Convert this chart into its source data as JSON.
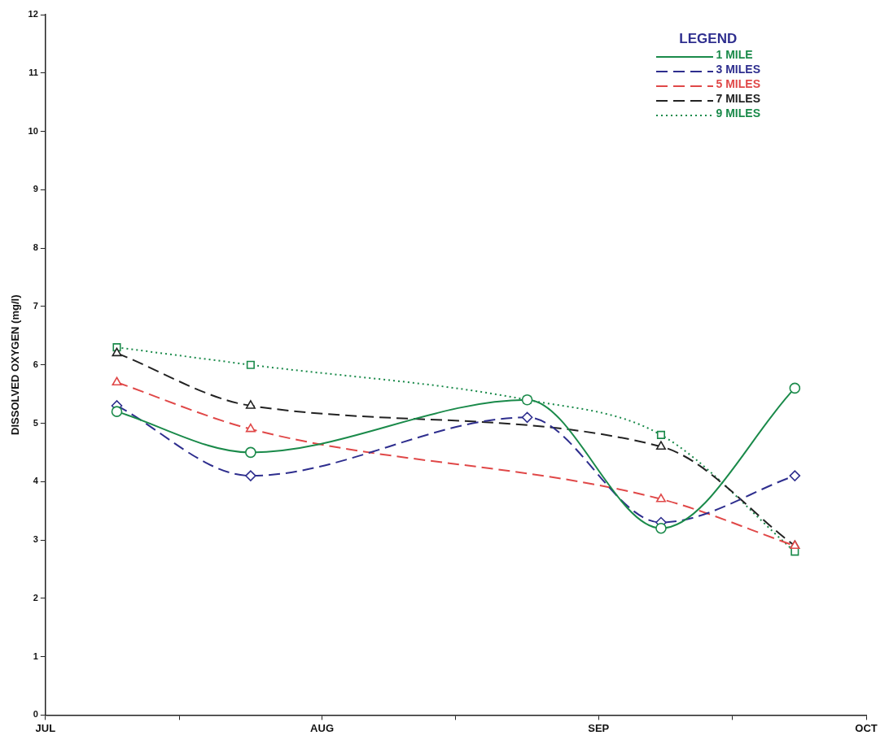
{
  "chart_data": {
    "type": "line",
    "ylabel": "DISSOLVED OXYGEN (mg/l)",
    "legend_title": "LEGEND",
    "legend": "top right",
    "grid": false,
    "x": [
      "--07-09",
      "--07-24",
      "--08-24",
      "--09-08",
      "--09-23"
    ],
    "xlim": [
      "--07-01",
      "--10-01"
    ],
    "xticks": [
      {
        "value": "--07-01",
        "label": "JUL"
      },
      {
        "value": "--07-16",
        "label": null
      },
      {
        "value": "--08-01",
        "label": "AUG"
      },
      {
        "value": "--08-16",
        "label": null
      },
      {
        "value": "--09-01",
        "label": "SEP"
      },
      {
        "value": "--09-16",
        "label": null
      },
      {
        "value": "--10-01",
        "label": "OCT"
      }
    ],
    "ylim": [
      0,
      12
    ],
    "yticks": [
      0,
      1,
      2,
      3,
      4,
      5,
      6,
      7,
      8,
      9,
      10,
      11,
      12
    ],
    "series": [
      {
        "name": "1 MILE",
        "color": "#1a8a4a",
        "marker": "circle",
        "line_style": "solid",
        "values": [
          5.2,
          4.5,
          5.4,
          3.2,
          5.6
        ]
      },
      {
        "name": "3 MILES",
        "color": "#2e2e8e",
        "marker": "diamond",
        "line_style": "dashed",
        "values": [
          5.3,
          4.1,
          5.1,
          3.3,
          4.1
        ]
      },
      {
        "name": "5 MILES",
        "color": "#e04848",
        "marker": "triangle",
        "line_style": "dashed",
        "values": [
          5.7,
          4.9,
          null,
          3.7,
          2.9
        ]
      },
      {
        "name": "7 MILES",
        "color": "#222222",
        "marker": "triangle",
        "line_style": "dashed",
        "values": [
          6.2,
          5.3,
          null,
          4.6,
          2.9
        ]
      },
      {
        "name": "9 MILES",
        "color": "#1a8a4a",
        "marker": "square",
        "line_style": "dotted",
        "values": [
          6.3,
          6.0,
          5.4,
          4.8,
          2.8
        ]
      }
    ]
  }
}
